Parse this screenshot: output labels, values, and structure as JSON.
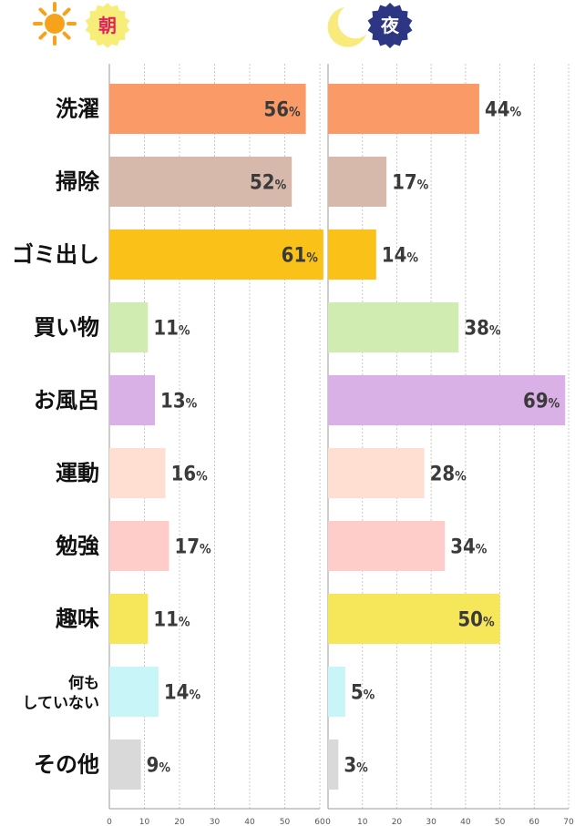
{
  "header": {
    "morning": {
      "label": "朝",
      "icon": "sun-icon",
      "badge_color": "#f7ee7a",
      "text_color": "#e0215d",
      "icon_color": "#f7a21b"
    },
    "night": {
      "label": "夜",
      "icon": "crescent-moon-icon",
      "badge_color": "#2d3683",
      "text_color": "#ffffff",
      "icon_color": "#f9ea7c"
    }
  },
  "chart_data": [
    {
      "id": "morning",
      "type": "bar",
      "orientation": "horizontal",
      "title": "朝",
      "categories": [
        "洗濯",
        "掃除",
        "ゴミ出し",
        "買い物",
        "お風呂",
        "運動",
        "勉強",
        "趣味",
        "何もしていない",
        "その他"
      ],
      "values": [
        56,
        52,
        61,
        11,
        13,
        16,
        17,
        11,
        14,
        9
      ],
      "value_labels": [
        "56",
        "52",
        "61",
        "11",
        "13",
        "16",
        "17",
        "11",
        "14",
        "9"
      ],
      "value_suffix": "%",
      "xlim": [
        0,
        60
      ],
      "xticks": [
        "0",
        "10",
        "20",
        "30",
        "40",
        "50",
        "60"
      ],
      "grid": true,
      "xlabel": "",
      "ylabel": ""
    },
    {
      "id": "night",
      "type": "bar",
      "orientation": "horizontal",
      "title": "夜",
      "categories": [
        "洗濯",
        "掃除",
        "ゴミ出し",
        "買い物",
        "お風呂",
        "運動",
        "勉強",
        "趣味",
        "何もしていない",
        "その他"
      ],
      "values": [
        44,
        17,
        14,
        38,
        69,
        28,
        34,
        50,
        5,
        3
      ],
      "value_labels": [
        "44",
        "17",
        "14",
        "38",
        "69",
        "28",
        "34",
        "50",
        "5",
        "3"
      ],
      "value_suffix": "%",
      "xlim": [
        0,
        70
      ],
      "xticks": [
        "0",
        "10",
        "20",
        "30",
        "40",
        "50",
        "60",
        "70"
      ],
      "grid": true,
      "xlabel": "",
      "ylabel": ""
    }
  ],
  "category_labels": [
    {
      "lines": [
        "洗濯"
      ]
    },
    {
      "lines": [
        "掃除"
      ]
    },
    {
      "lines": [
        "ゴミ出し"
      ]
    },
    {
      "lines": [
        "買い物"
      ]
    },
    {
      "lines": [
        "お風呂"
      ]
    },
    {
      "lines": [
        "運動"
      ]
    },
    {
      "lines": [
        "勉強"
      ]
    },
    {
      "lines": [
        "趣味"
      ]
    },
    {
      "lines": [
        "何も",
        "していない"
      ]
    },
    {
      "lines": [
        "その他"
      ]
    }
  ],
  "bar_colors": [
    "#f99a67",
    "#d6b9aa",
    "#fac119",
    "#d1ecb0",
    "#d9b1e6",
    "#fedfd2",
    "#feccc9",
    "#f5e65a",
    "#c8f5f7",
    "#d9d9d9"
  ]
}
